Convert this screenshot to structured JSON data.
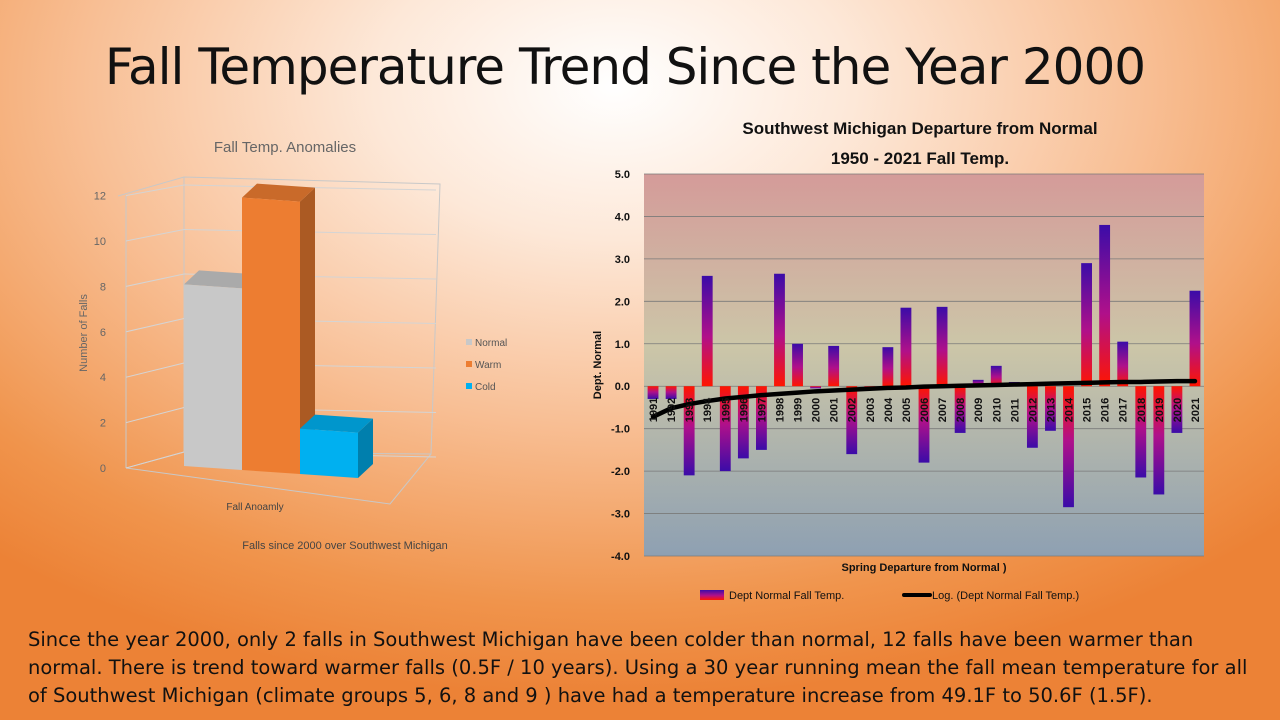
{
  "slide": {
    "title": "Fall Temperature Trend Since the Year 2000",
    "body": "Since the year 2000, only 2 falls in Southwest Michigan have been colder than normal, 12 falls have been warmer than normal.  There is trend toward warmer falls (0.5F / 10 years).  Using a 30 year running mean the fall mean temperature for all of Southwest Michigan  (climate groups 5, 6, 8 and 9 ) have had a temperature increase from 49.1F to 50.6F (1.5F)."
  },
  "chart_data": [
    {
      "type": "bar",
      "title": "Fall Temp. Anomalies",
      "subtitle": "Falls since 2000 over Southwest Michigan",
      "xlabel": "Fall Anoamly",
      "ylabel": "Number of Falls",
      "ylim": [
        0,
        12
      ],
      "yticks": [
        "0",
        "2",
        "4",
        "6",
        "8",
        "10",
        "12"
      ],
      "categories": [
        "Normal",
        "Warm",
        "Cold"
      ],
      "values": [
        8,
        12,
        2
      ],
      "colors": [
        "#c8c8c8",
        "#ed7d31",
        "#00b0f0"
      ],
      "legend": [
        "Normal",
        "Warm",
        "Cold"
      ],
      "legend_position": "right",
      "three_d": true
    },
    {
      "type": "bar",
      "title_line1": "Southwest Michigan Departure from Normal",
      "title_line2": "1950 - 2021 Fall Temp.",
      "xlabel": "Spring Departure from Normal )",
      "ylabel": "Dept. Normal",
      "ylim": [
        -4.0,
        5.0
      ],
      "yticks": [
        "5.0",
        "4.0",
        "3.0",
        "2.0",
        "1.0",
        "0.0",
        "-1.0",
        "-2.0",
        "-3.0",
        "-4.0"
      ],
      "categories": [
        "1991",
        "1992",
        "1993",
        "1994",
        "1995",
        "1996",
        "1997",
        "1998",
        "1999",
        "2000",
        "2001",
        "2002",
        "2003",
        "2004",
        "2005",
        "2006",
        "2007",
        "2008",
        "2009",
        "2010",
        "2011",
        "2012",
        "2013",
        "2014",
        "2015",
        "2016",
        "2017",
        "2018",
        "2019",
        "2020",
        "2021"
      ],
      "series": [
        {
          "name": "Dept Normal Fall Temp.",
          "values": [
            -0.3,
            -0.3,
            -2.1,
            2.6,
            -2.0,
            -1.7,
            -1.5,
            2.65,
            1.0,
            -0.05,
            0.95,
            -1.6,
            -0.05,
            0.92,
            1.85,
            -1.8,
            1.87,
            -1.1,
            0.15,
            0.48,
            0.1,
            -1.45,
            -1.05,
            -2.85,
            2.9,
            3.8,
            1.05,
            -2.15,
            -2.55,
            -1.1,
            2.25
          ]
        },
        {
          "name": "Log. (Dept Normal Fall Temp.)",
          "type": "trendline-log",
          "values": [
            -0.72,
            -0.52,
            -0.42,
            -0.35,
            -0.29,
            -0.25,
            -0.21,
            -0.18,
            -0.15,
            -0.12,
            -0.1,
            -0.08,
            -0.06,
            -0.04,
            -0.03,
            -0.01,
            0.0,
            0.01,
            0.02,
            0.03,
            0.04,
            0.05,
            0.06,
            0.07,
            0.08,
            0.09,
            0.1,
            0.1,
            0.11,
            0.12,
            0.12
          ]
        }
      ],
      "colors": {
        "bar_top": "#3b0ca8",
        "bar_bottom": "#ff1500",
        "trend": "#000000",
        "plot_top": "#d49b99",
        "plot_mid": "#ccc6a8",
        "plot_bottom": "#8ea0b2",
        "grid": "#7a7a7a"
      },
      "legend_position": "bottom",
      "grid": true
    }
  ]
}
